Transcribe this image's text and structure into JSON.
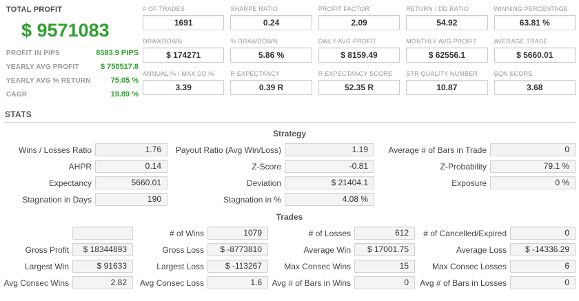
{
  "colors": {
    "green": "#2fa12f"
  },
  "left_panel": {
    "title": "TOTAL PROFIT",
    "total_profit": "$ 9571083",
    "rows": [
      {
        "label": "PROFIT IN PIPS",
        "value": "8583.9 PIPS"
      },
      {
        "label": "YEARLY AVG PROFIT",
        "value": "$ 750517.8"
      },
      {
        "label": "YEARLY AVG % RETURN",
        "value": "75.05 %"
      },
      {
        "label": "CAGR",
        "value": "19.89 %"
      }
    ]
  },
  "stats_header": "STATS",
  "metrics": {
    "items": [
      {
        "label": "# OF TRADES",
        "value": "1691"
      },
      {
        "label": "SHARPE RATIO",
        "value": "0.24"
      },
      {
        "label": "PROFIT FACTOR",
        "value": "2.09"
      },
      {
        "label": "RETURN / DD RATIO",
        "value": "54.92"
      },
      {
        "label": "WINNING PERCENTAGE",
        "value": "63.81 %"
      },
      {
        "label": "DRAWDOWN",
        "value": "$ 174271"
      },
      {
        "label": "% DRAWDOWN",
        "value": "5.86 %"
      },
      {
        "label": "DAILY AVG PROFIT",
        "value": "$ 8159.49"
      },
      {
        "label": "MONTHLY AVG PROFIT",
        "value": "$ 62556.1"
      },
      {
        "label": "AVERAGE TRADE",
        "value": "$ 5660.01"
      },
      {
        "label": "ANNUAL % / MAX DD %",
        "value": "3.39"
      },
      {
        "label": "R EXPECTANCY",
        "value": "0.39 R"
      },
      {
        "label": "R EXPECTANCY SCORE",
        "value": "52.35 R"
      },
      {
        "label": "STR QUALITY NUMBER",
        "value": "10.87"
      },
      {
        "label": "SQN SCORE",
        "value": "3.68"
      }
    ]
  },
  "strategy": {
    "title": "Strategy",
    "cells": [
      {
        "label": "Wins / Losses Ratio",
        "value": "1.76"
      },
      {
        "label": "Payout Ratio (Avg Win/Loss)",
        "value": "1.19"
      },
      {
        "label": "Average # of Bars in Trade",
        "value": "0"
      },
      {
        "label": "AHPR",
        "value": "0.14"
      },
      {
        "label": "Z-Score",
        "value": "-0.81"
      },
      {
        "label": "Z-Probability",
        "value": "79.1 %"
      },
      {
        "label": "Expectancy",
        "value": "5660.01"
      },
      {
        "label": "Deviation",
        "value": "$ 21404.1"
      },
      {
        "label": "Exposure",
        "value": "0 %"
      },
      {
        "label": "Stagnation in Days",
        "value": "190"
      },
      {
        "label": "Stagnation in %",
        "value": "4.08 %"
      },
      {
        "label": "",
        "value": ""
      }
    ]
  },
  "trades": {
    "title": "Trades",
    "cells": [
      {
        "label": "",
        "value": ""
      },
      {
        "label": "# of Wins",
        "value": "1079"
      },
      {
        "label": "# of Losses",
        "value": "612"
      },
      {
        "label": "# of Cancelled/Expired",
        "value": "0"
      },
      {
        "label": "Gross Profit",
        "value": "$ 18344893"
      },
      {
        "label": "Gross Loss",
        "value": "$ -8773810"
      },
      {
        "label": "Average Win",
        "value": "$ 17001.75"
      },
      {
        "label": "Average Loss",
        "value": "$ -14336.29"
      },
      {
        "label": "Largest Win",
        "value": "$ 91633"
      },
      {
        "label": "Largest Loss",
        "value": "$ -113267"
      },
      {
        "label": "Max Consec Wins",
        "value": "15"
      },
      {
        "label": "Max Consec Losses",
        "value": "6"
      },
      {
        "label": "Avg Consec Wins",
        "value": "2.82"
      },
      {
        "label": "Avg Consec Loss",
        "value": "1.6"
      },
      {
        "label": "Avg # of Bars in Wins",
        "value": "0"
      },
      {
        "label": "Avg # of Bars in Losses",
        "value": "0"
      }
    ]
  }
}
